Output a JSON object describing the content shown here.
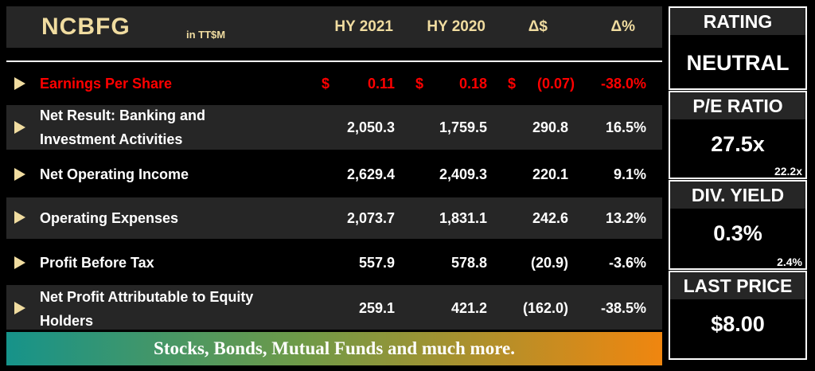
{
  "header": {
    "company": "NCBFG",
    "units": "in TT$M",
    "cols": [
      "HY 2021",
      "HY 2020",
      "Δ$",
      "Δ%"
    ]
  },
  "rows": [
    {
      "label": "Earnings Per Share",
      "highlight": true,
      "cur_sym": "$",
      "hy2021": "0.11",
      "hy2020": "0.18",
      "delta_sym": "$",
      "delta": "(0.07)",
      "pct": "-38.0%"
    },
    {
      "label1": "Net Result: Banking and",
      "label2": "Investment Activities",
      "hy2021": "2,050.3",
      "hy2020": "1,759.5",
      "delta": "290.8",
      "pct": "16.5%"
    },
    {
      "label": "Net Operating Income",
      "hy2021": "2,629.4",
      "hy2020": "2,409.3",
      "delta": "220.1",
      "pct": "9.1%"
    },
    {
      "label": "Operating Expenses",
      "hy2021": "2,073.7",
      "hy2020": "1,831.1",
      "delta": "242.6",
      "pct": "13.2%"
    },
    {
      "label": "Profit Before Tax",
      "hy2021": "557.9",
      "hy2020": "578.8",
      "delta": "(20.9)",
      "pct": "-3.6%"
    },
    {
      "label1": "Net Profit Attributable to Equity",
      "label2": "Holders",
      "hy2021": "259.1",
      "hy2020": "421.2",
      "delta": "(162.0)",
      "pct": "-38.5%"
    }
  ],
  "banner": "Stocks, Bonds, Mutual Funds and much more.",
  "side": {
    "rating": {
      "title": "RATING",
      "value": "NEUTRAL"
    },
    "pe": {
      "title": "P/E RATIO",
      "value": "27.5x",
      "sub": "22.2x"
    },
    "div": {
      "title": "DIV. YIELD",
      "value": "0.3%",
      "sub": "2.4%"
    },
    "price": {
      "title": "LAST PRICE",
      "value": "$8.00"
    }
  },
  "colors": {
    "gold": "#f0dca0",
    "red": "#ff0000",
    "shade": "#262626"
  }
}
